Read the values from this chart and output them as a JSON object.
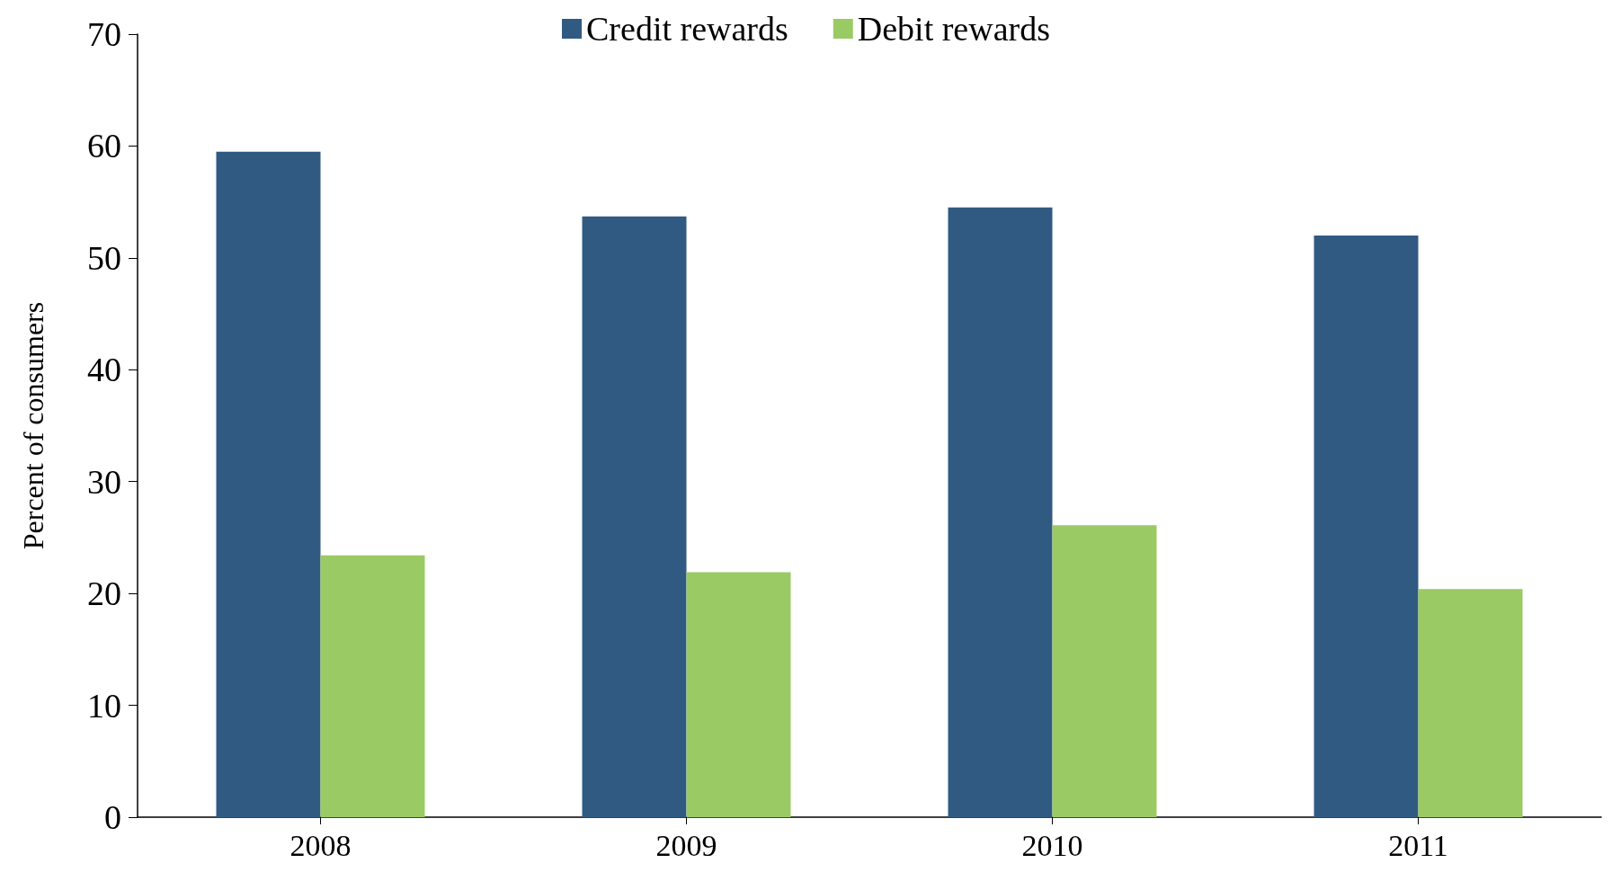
{
  "chart_data": {
    "type": "bar",
    "ylabel": "Percent of consumers",
    "categories": [
      "2008",
      "2009",
      "2010",
      "2011"
    ],
    "series": [
      {
        "name": "Credit rewards",
        "color": "#305a82",
        "values": [
          59.5,
          53.7,
          54.5,
          52.0
        ]
      },
      {
        "name": "Debit rewards",
        "color": "#9aca64",
        "values": [
          23.4,
          21.9,
          26.1,
          20.4
        ]
      }
    ],
    "ylim": [
      0,
      70
    ],
    "yticks": [
      0,
      10,
      20,
      30,
      40,
      50,
      60,
      70
    ],
    "grid": false,
    "legend": "top"
  }
}
